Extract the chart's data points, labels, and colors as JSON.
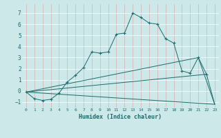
{
  "title": "",
  "xlabel": "Humidex (Indice chaleur)",
  "background_color": "#cce8e8",
  "grid_color_x": "#e8a0a0",
  "grid_color_y": "#ffffff",
  "line_color": "#1a6b6b",
  "xlim": [
    -0.5,
    23.5
  ],
  "ylim": [
    -1.5,
    7.8
  ],
  "xticks": [
    0,
    1,
    2,
    3,
    4,
    5,
    6,
    7,
    8,
    9,
    10,
    11,
    12,
    13,
    14,
    15,
    16,
    17,
    18,
    19,
    20,
    21,
    22,
    23
  ],
  "yticks": [
    -1,
    0,
    1,
    2,
    3,
    4,
    5,
    6,
    7
  ],
  "main_x": [
    0,
    1,
    2,
    3,
    4,
    5,
    6,
    7,
    8,
    9,
    10,
    11,
    12,
    13,
    14,
    15,
    16,
    17,
    18,
    19,
    20,
    21,
    22
  ],
  "main_y": [
    -0.1,
    -0.7,
    -0.85,
    -0.75,
    -0.2,
    0.8,
    1.4,
    2.1,
    3.5,
    3.4,
    3.5,
    5.1,
    5.2,
    7.0,
    6.6,
    6.1,
    6.0,
    4.7,
    4.3,
    1.8,
    1.6,
    3.0,
    1.5
  ],
  "diag_lines": [
    {
      "x": [
        0,
        21,
        23
      ],
      "y": [
        -0.1,
        3.0,
        -1.2
      ]
    },
    {
      "x": [
        0,
        22,
        23
      ],
      "y": [
        -0.1,
        1.5,
        -1.2
      ]
    },
    {
      "x": [
        0,
        23
      ],
      "y": [
        -0.1,
        -1.2
      ]
    }
  ]
}
